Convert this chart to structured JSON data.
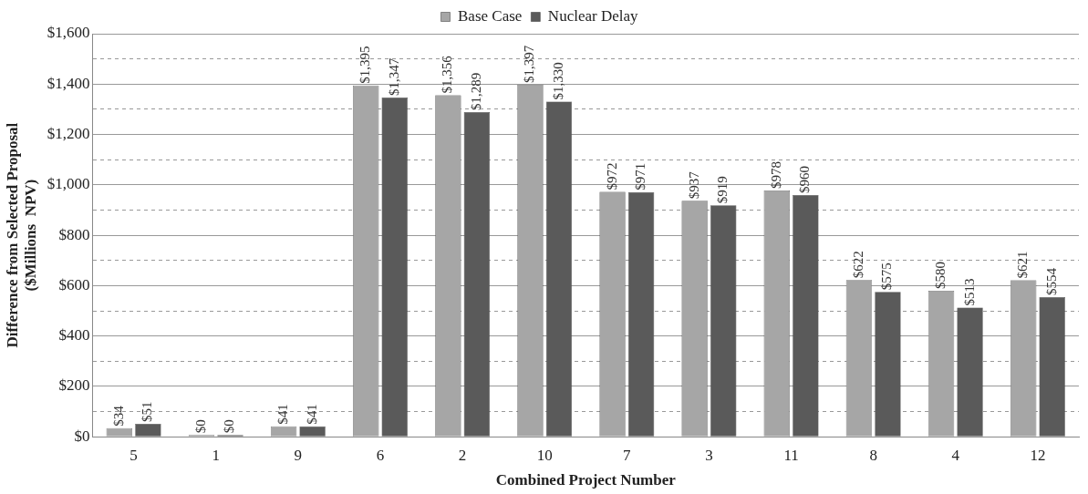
{
  "chart_data": {
    "type": "bar",
    "xlabel": "Combined Project Number",
    "ylabel": "Difference from Selected Proposal ($Millions  NPV)",
    "categories": [
      "5",
      "1",
      "9",
      "6",
      "2",
      "10",
      "7",
      "3",
      "11",
      "8",
      "4",
      "12"
    ],
    "series": [
      {
        "name": "Base Case",
        "color": "#a6a6a6",
        "values": [
          34,
          0,
          41,
          1395,
          1356,
          1397,
          972,
          937,
          978,
          622,
          580,
          621
        ],
        "value_labels": [
          "$34",
          "$0",
          "$41",
          "$1,395",
          "$1,356",
          "$1,397",
          "$972",
          "$937",
          "$978",
          "$622",
          "$580",
          "$621"
        ]
      },
      {
        "name": "Nuclear Delay",
        "color": "#5a5a5a",
        "values": [
          51,
          0,
          41,
          1347,
          1289,
          1330,
          971,
          919,
          960,
          575,
          513,
          554
        ],
        "value_labels": [
          "$51",
          "$0",
          "$41",
          "$1,347",
          "$1,289",
          "$1,330",
          "$971",
          "$919",
          "$960",
          "$575",
          "$513",
          "$554"
        ]
      }
    ],
    "ylim": [
      0,
      1600
    ],
    "yticks": [
      {
        "value": 0,
        "label": "$0"
      },
      {
        "value": 100,
        "label": null
      },
      {
        "value": 200,
        "label": "$200"
      },
      {
        "value": 300,
        "label": null
      },
      {
        "value": 400,
        "label": "$400"
      },
      {
        "value": 500,
        "label": null
      },
      {
        "value": 600,
        "label": "$600"
      },
      {
        "value": 700,
        "label": null
      },
      {
        "value": 800,
        "label": "$800"
      },
      {
        "value": 900,
        "label": null
      },
      {
        "value": 1000,
        "label": "$1,000"
      },
      {
        "value": 1100,
        "label": null
      },
      {
        "value": 1200,
        "label": "$1,200"
      },
      {
        "value": 1300,
        "label": null
      },
      {
        "value": 1400,
        "label": "$1,400"
      },
      {
        "value": 1500,
        "label": null
      },
      {
        "value": 1600,
        "label": "$1,600"
      }
    ],
    "grid": "y",
    "legend": "top"
  }
}
